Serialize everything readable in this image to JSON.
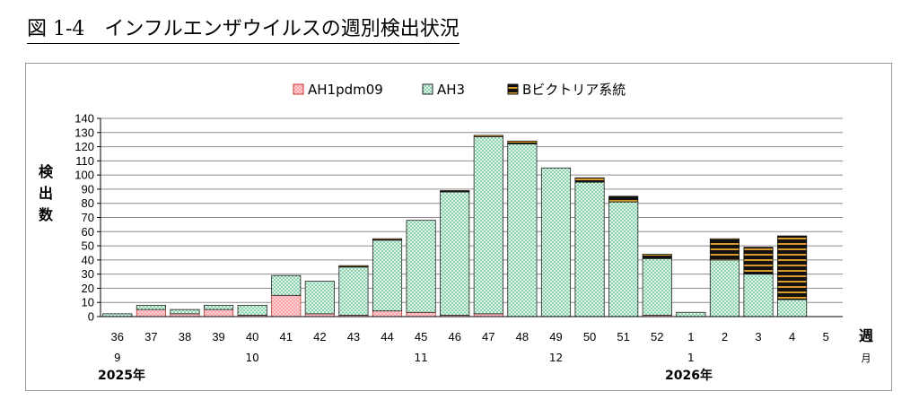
{
  "figure": {
    "title": "図 1-4　インフルエンザウイルスの週別検出状況"
  },
  "chart_data": {
    "type": "bar",
    "stacked": true,
    "categories": [
      "36",
      "37",
      "38",
      "39",
      "40",
      "41",
      "42",
      "43",
      "44",
      "45",
      "46",
      "47",
      "48",
      "49",
      "50",
      "51",
      "52",
      "1",
      "2",
      "3",
      "4",
      "5"
    ],
    "month_labels": [
      {
        "category": "36",
        "label": "9"
      },
      {
        "category": "40",
        "label": "10"
      },
      {
        "category": "45",
        "label": "11"
      },
      {
        "category": "49",
        "label": "12"
      },
      {
        "category": "1",
        "label": "1"
      }
    ],
    "year_labels": [
      {
        "category": "36",
        "label": "2025年"
      },
      {
        "category": "1",
        "label": "2026年"
      }
    ],
    "series": [
      {
        "name": "AH1pdm09",
        "color": "#f4a3a8",
        "values": [
          0,
          5,
          2,
          5,
          1,
          15,
          2,
          1,
          4,
          3,
          1,
          2,
          0,
          0,
          0,
          0,
          1,
          0,
          0,
          0,
          0,
          0
        ]
      },
      {
        "name": "AH3",
        "color": "#d6f5e6",
        "values": [
          2,
          3,
          3,
          3,
          7,
          14,
          23,
          34,
          50,
          65,
          87,
          125,
          122,
          105,
          95,
          81,
          40,
          3,
          40,
          30,
          12,
          0
        ]
      },
      {
        "name": "Bビクトリア系統",
        "color": "#1a1a1a",
        "values": [
          0,
          0,
          0,
          0,
          0,
          0,
          0,
          1,
          1,
          0,
          1,
          1,
          2,
          0,
          3,
          4,
          3,
          0,
          15,
          19,
          45,
          0
        ]
      }
    ],
    "ylabel": "検\n出\n数",
    "xlabel": "週",
    "month_axis_label": "月",
    "ylim": [
      0,
      140
    ],
    "ytick_step": 10,
    "grid": true,
    "legend_position": "top-center"
  }
}
